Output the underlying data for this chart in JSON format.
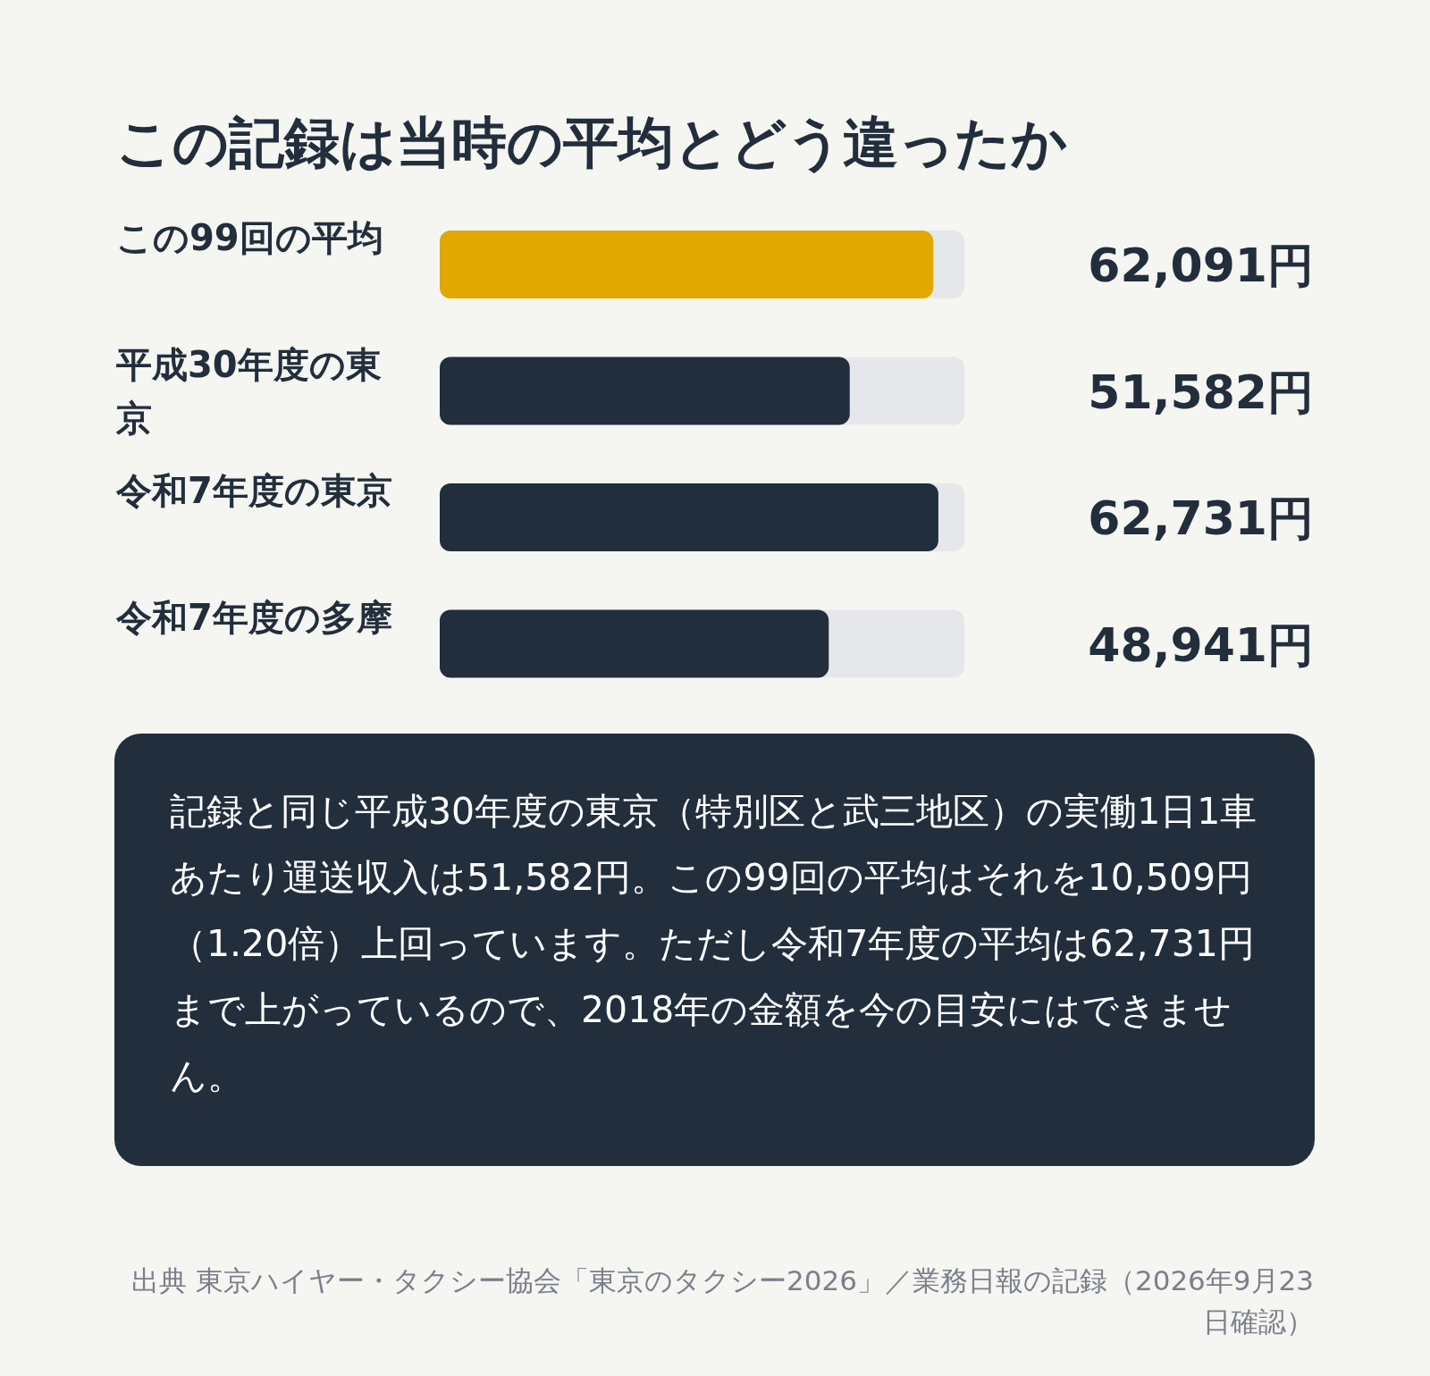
{
  "chart_data": {
    "type": "bar",
    "orientation": "horizontal",
    "title": "この記録は当時の平均とどう違ったか",
    "categories": [
      "この99回の平均",
      "平成30年度の東京",
      "令和7年度の東京",
      "令和7年度の多摩"
    ],
    "values": [
      62091,
      51582,
      62731,
      48941
    ],
    "colors": [
      "#e0a800",
      "#222e3c",
      "#222e3c",
      "#222e3c"
    ],
    "xlim": [
      0,
      66000
    ],
    "tick_labels": "y",
    "value_labels": [
      "62,091円",
      "51,582円",
      "62,731円",
      "48,941円"
    ],
    "annotations": [
      "記録と同じ平成30年度の東京（特別区と武三地区）の実働1日1車あたり運送収入は51,582円。この99回の平均はそれを10,509円（1.20倍）上回っています。ただし令和7年度の平均は62,731円まで上がっているので、2018年の金額を今の目安にはできません。",
      "出典 東京ハイヤー・タクシー協会「東京のタクシー2026」／業務日報の記録（2026年9月23日確認）"
    ]
  }
}
